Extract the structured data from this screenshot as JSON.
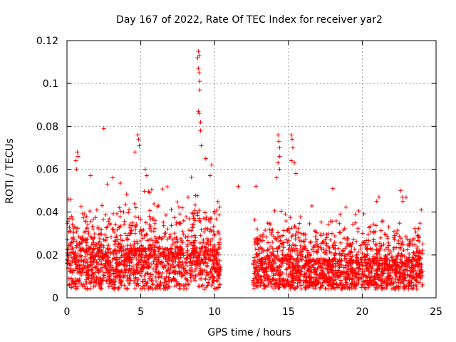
{
  "chart_data": {
    "type": "scatter",
    "title": "Day 167 of 2022, Rate Of TEC Index for receiver yar2",
    "xlabel": "GPS time / hours",
    "ylabel": "ROTI / TECUs",
    "xlim": [
      0,
      25
    ],
    "ylim": [
      0,
      0.12
    ],
    "xticks": [
      0,
      5,
      10,
      15,
      20,
      25
    ],
    "yticks": [
      0,
      0.02,
      0.04,
      0.06,
      0.08,
      0.1,
      0.12
    ],
    "xtick_labels": [
      "0",
      "5",
      "10",
      "15",
      "20",
      "25"
    ],
    "ytick_labels": [
      "0",
      "0.02",
      "0.04",
      "0.06",
      "0.08",
      "0.1",
      "0.12"
    ],
    "grid": true,
    "marker": "plus",
    "color": "#ff0000",
    "series": [
      {
        "segments": [
          {
            "x_range": [
              0,
              10.4
            ],
            "baseline": 0.015,
            "spread": 0.035
          },
          {
            "x_range": [
              12.6,
              24.1
            ],
            "baseline": 0.011,
            "spread": 0.028
          }
        ],
        "notable_points": [
          {
            "x": 8.9,
            "y": 0.115
          },
          {
            "x": 8.95,
            "y": 0.113
          },
          {
            "x": 8.85,
            "y": 0.112
          },
          {
            "x": 8.9,
            "y": 0.107
          },
          {
            "x": 8.95,
            "y": 0.105
          },
          {
            "x": 9.0,
            "y": 0.101
          },
          {
            "x": 9.0,
            "y": 0.097
          },
          {
            "x": 8.9,
            "y": 0.087
          },
          {
            "x": 8.95,
            "y": 0.086
          },
          {
            "x": 9.05,
            "y": 0.082
          },
          {
            "x": 9.05,
            "y": 0.078
          },
          {
            "x": 9.1,
            "y": 0.071
          },
          {
            "x": 2.5,
            "y": 0.079
          },
          {
            "x": 4.8,
            "y": 0.076
          },
          {
            "x": 4.85,
            "y": 0.074
          },
          {
            "x": 4.9,
            "y": 0.071
          },
          {
            "x": 4.6,
            "y": 0.068
          },
          {
            "x": 0.7,
            "y": 0.068
          },
          {
            "x": 0.75,
            "y": 0.066
          },
          {
            "x": 0.6,
            "y": 0.064
          },
          {
            "x": 0.65,
            "y": 0.06
          },
          {
            "x": 15.2,
            "y": 0.076
          },
          {
            "x": 15.25,
            "y": 0.074
          },
          {
            "x": 14.3,
            "y": 0.076
          },
          {
            "x": 14.35,
            "y": 0.073
          },
          {
            "x": 14.4,
            "y": 0.07
          },
          {
            "x": 15.3,
            "y": 0.07
          },
          {
            "x": 14.4,
            "y": 0.066
          },
          {
            "x": 15.2,
            "y": 0.064
          },
          {
            "x": 15.4,
            "y": 0.063
          },
          {
            "x": 14.3,
            "y": 0.063
          },
          {
            "x": 14.4,
            "y": 0.06
          },
          {
            "x": 15.5,
            "y": 0.058
          },
          {
            "x": 14.2,
            "y": 0.056
          },
          {
            "x": 18.0,
            "y": 0.051
          },
          {
            "x": 22.6,
            "y": 0.05
          },
          {
            "x": 22.7,
            "y": 0.047
          },
          {
            "x": 22.75,
            "y": 0.045
          },
          {
            "x": 24.0,
            "y": 0.041
          },
          {
            "x": 11.6,
            "y": 0.052
          },
          {
            "x": 12.8,
            "y": 0.052
          },
          {
            "x": 3.1,
            "y": 0.056
          },
          {
            "x": 5.3,
            "y": 0.06
          },
          {
            "x": 5.4,
            "y": 0.057
          },
          {
            "x": 1.6,
            "y": 0.057
          },
          {
            "x": 9.8,
            "y": 0.062
          },
          {
            "x": 9.4,
            "y": 0.065
          },
          {
            "x": 9.7,
            "y": 0.057
          }
        ]
      }
    ]
  }
}
